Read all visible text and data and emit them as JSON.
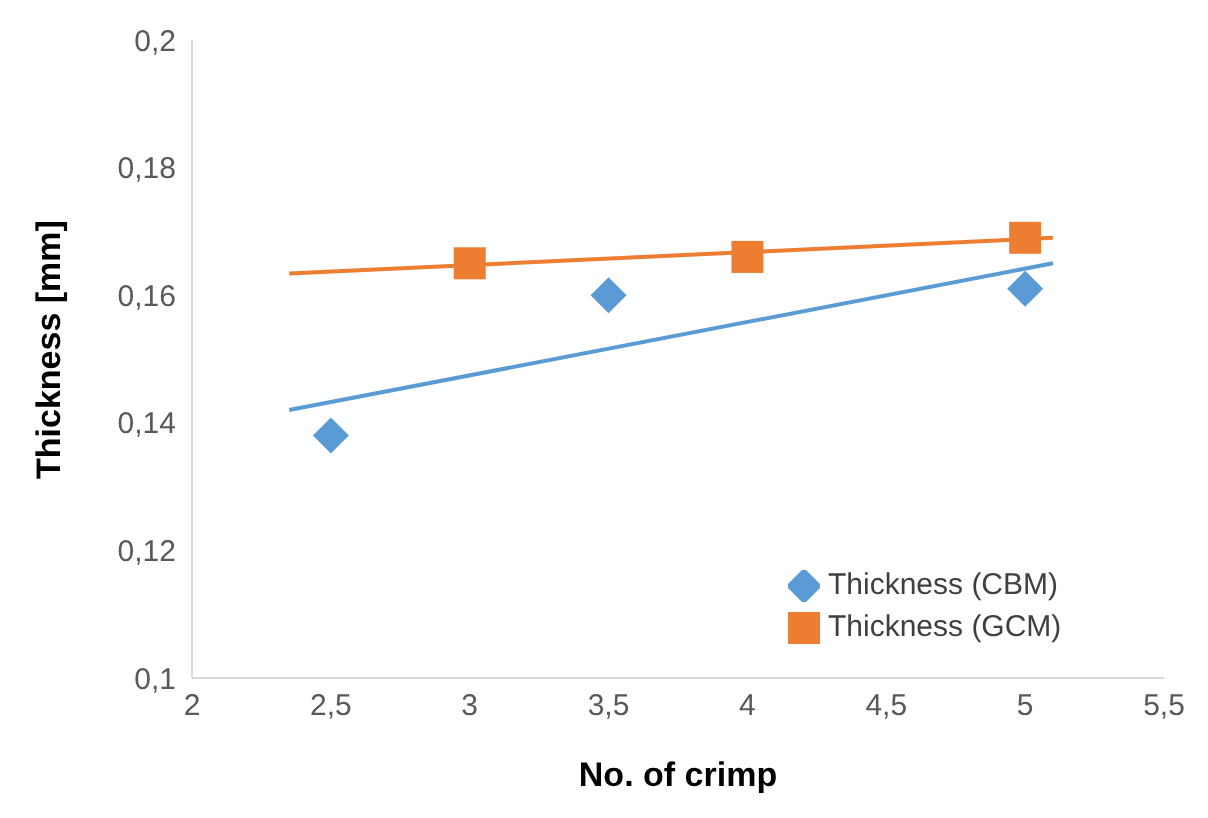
{
  "chart_data": {
    "type": "scatter",
    "xlabel": "No. of crimp",
    "ylabel": "Thickness [mm]",
    "xlim": [
      2,
      5.5
    ],
    "ylim": [
      0.1,
      0.2
    ],
    "xticks": [
      2,
      {
        "value": 2.5,
        "label": "2,5"
      },
      3,
      {
        "value": 3.5,
        "label": "3,5"
      },
      4,
      {
        "value": 4.5,
        "label": "4,5"
      },
      5,
      {
        "value": 5.5,
        "label": "5,5"
      }
    ],
    "yticks": [
      {
        "value": 0.1,
        "label": "0,1"
      },
      {
        "value": 0.12,
        "label": "0,12"
      },
      {
        "value": 0.14,
        "label": "0,14"
      },
      {
        "value": 0.16,
        "label": "0,16"
      },
      {
        "value": 0.18,
        "label": "0,18"
      },
      {
        "value": 0.2,
        "label": "0,2"
      }
    ],
    "grid": false,
    "legend": "bottom right",
    "series": [
      {
        "name": "Thickness (CBM)",
        "marker": "diamond",
        "color": "#5b9bd5",
        "x": [
          2.5,
          3.5,
          5
        ],
        "values": [
          0.138,
          0.16,
          0.161
        ]
      },
      {
        "name": "Thickness (GCM)",
        "marker": "square",
        "color": "#ed7d31",
        "x": [
          3,
          4,
          5
        ],
        "values": [
          0.165,
          0.166,
          0.169
        ]
      },
      {
        "type": "line",
        "marker": "none",
        "line_style": "solid",
        "color": "#5b9bd5",
        "x": [
          2.35,
          5.1
        ],
        "values": [
          0.142,
          0.165
        ]
      },
      {
        "type": "line",
        "marker": "none",
        "line_style": "solid",
        "color": "#ed7d31",
        "x": [
          2.35,
          5.1
        ],
        "values": [
          0.1634,
          0.169
        ]
      }
    ]
  }
}
